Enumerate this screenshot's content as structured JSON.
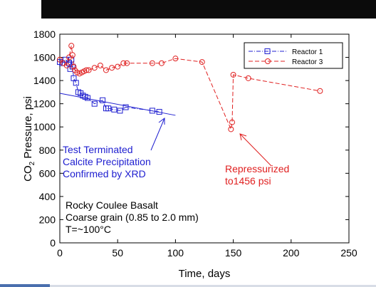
{
  "chart_data": {
    "type": "scatter",
    "xlabel": "Time, days",
    "ylabel_main": "CO",
    "ylabel_sub": "2",
    "ylabel_rest": " Pressure, psi",
    "xlim": [
      0,
      250
    ],
    "ylim": [
      0,
      1800
    ],
    "xticks": [
      0,
      50,
      100,
      150,
      200,
      250
    ],
    "yticks": [
      0,
      200,
      400,
      600,
      800,
      1000,
      1200,
      1400,
      1600,
      1800
    ],
    "grid": false,
    "legend_position": "top-right",
    "series": [
      {
        "name": "Reactor 1",
        "color": "#2020d0",
        "marker": "square",
        "line_style": "dash-dot",
        "x": [
          0,
          2,
          5,
          8,
          9,
          10,
          11,
          12,
          14,
          16,
          18,
          20,
          22,
          24,
          30,
          37,
          40,
          42,
          47,
          52,
          57,
          80,
          86
        ],
        "y": [
          1560,
          1550,
          1580,
          1550,
          1500,
          1580,
          1520,
          1420,
          1380,
          1300,
          1290,
          1270,
          1260,
          1250,
          1200,
          1230,
          1160,
          1160,
          1150,
          1140,
          1170,
          1140,
          1130
        ]
      },
      {
        "name": "Reactor 3",
        "color": "#e02020",
        "marker": "circle",
        "line_style": "dash",
        "x": [
          0,
          3,
          6,
          8,
          10,
          11,
          12,
          13,
          15,
          17,
          19,
          21,
          23,
          25,
          30,
          35,
          40,
          45,
          50,
          55,
          58,
          80,
          88,
          100,
          123,
          148,
          149,
          150,
          163,
          225
        ],
        "y": [
          1580,
          1550,
          1530,
          1600,
          1700,
          1620,
          1520,
          1490,
          1470,
          1460,
          1470,
          1480,
          1490,
          1490,
          1510,
          1530,
          1490,
          1510,
          1520,
          1550,
          1550,
          1550,
          1550,
          1590,
          1560,
          980,
          1040,
          1450,
          1420,
          1310
        ]
      }
    ],
    "trendline": {
      "color": "#2020d0",
      "x": [
        0,
        100
      ],
      "y": [
        1290,
        1100
      ]
    },
    "annotations": [
      {
        "lines": [
          "Test Terminated",
          "Calcite Precipitation",
          "Confirmed by XRD"
        ],
        "color": "#2020d0"
      },
      {
        "lines": [
          "Repressurized",
          "to1456 psi"
        ],
        "color": "#e02020"
      },
      {
        "lines": [
          "Rocky Coulee Basalt",
          "Coarse grain (0.85 to 2.0 mm)",
          "T=~100°C"
        ],
        "color": "#000000"
      }
    ]
  }
}
